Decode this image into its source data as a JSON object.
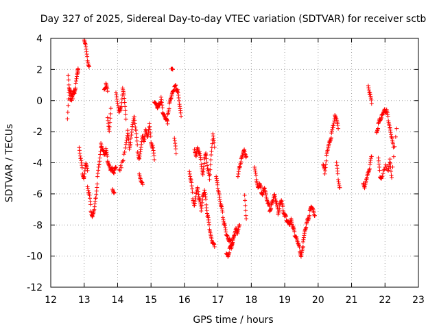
{
  "chart_data": {
    "type": "scatter",
    "title": "Day 327 of 2025, Sidereal Day-to-day VTEC variation (SDTVAR) for receiver sctb",
    "xlabel": "GPS time / hours",
    "ylabel": "SDTVAR / TECUs",
    "xlim": [
      12,
      23
    ],
    "ylim": [
      -12,
      4
    ],
    "xticks": [
      12,
      13,
      14,
      15,
      16,
      17,
      18,
      19,
      20,
      21,
      22,
      23
    ],
    "yticks": [
      -12,
      -10,
      -8,
      -6,
      -4,
      -2,
      0,
      2,
      4
    ],
    "grid": true,
    "marker": "+",
    "color": "#ff0000",
    "segments": [
      {
        "x": [
          12.5,
          12.55,
          12.6,
          12.65,
          12.7,
          12.75,
          12.8,
          12.82
        ],
        "y": [
          -1.3,
          0.9,
          0.5,
          0.3,
          0.6,
          1.0,
          1.8,
          2.0
        ]
      },
      {
        "x": [
          12.52,
          12.58,
          12.66,
          12.74
        ],
        "y": [
          1.5,
          0.0,
          0.2,
          0.8
        ]
      },
      {
        "x": [
          12.85,
          12.9,
          12.95,
          13.0,
          13.05,
          13.1
        ],
        "y": [
          -3.0,
          -3.8,
          -4.6,
          -5.0,
          -4.0,
          -4.5
        ]
      },
      {
        "x": [
          13.0,
          13.05,
          13.1,
          13.15
        ],
        "y": [
          3.8,
          3.5,
          2.6,
          2.2
        ]
      },
      {
        "x": [
          13.1,
          13.15,
          13.2,
          13.25,
          13.3,
          13.35,
          13.4,
          13.45,
          13.5
        ],
        "y": [
          -5.5,
          -6.0,
          -7.0,
          -7.5,
          -7.0,
          -6.2,
          -5.0,
          -4.0,
          -3.0
        ]
      },
      {
        "x": [
          13.5,
          13.55,
          13.6,
          13.65,
          13.7,
          13.75,
          13.8,
          13.85,
          13.9,
          13.95
        ],
        "y": [
          -2.8,
          -3.2,
          -3.4,
          -3.2,
          -3.8,
          -4.2,
          -4.5,
          -4.4,
          -4.6,
          -4.3
        ]
      },
      {
        "x": [
          13.6,
          13.65,
          13.7
        ],
        "y": [
          0.8,
          1.0,
          0.6
        ]
      },
      {
        "x": [
          13.7,
          13.75,
          13.8
        ],
        "y": [
          -1.0,
          -2.0,
          -0.5
        ]
      },
      {
        "x": [
          13.85,
          13.9
        ],
        "y": [
          -5.6,
          -5.9
        ]
      },
      {
        "x": [
          13.95,
          14.0,
          14.05,
          14.1,
          14.15,
          14.2,
          14.25
        ],
        "y": [
          0.6,
          -0.2,
          -0.8,
          -0.5,
          0.7,
          0.2,
          -1.2
        ]
      },
      {
        "x": [
          14.05,
          14.15,
          14.25,
          14.3,
          14.35,
          14.4,
          14.45,
          14.5,
          14.55,
          14.6,
          14.65,
          14.7,
          14.75,
          14.8,
          14.85,
          14.9,
          14.95,
          15.0,
          15.05,
          15.1
        ],
        "y": [
          -4.5,
          -4.0,
          -2.8,
          -2.0,
          -3.0,
          -2.5,
          -1.5,
          -1.0,
          -2.0,
          -3.2,
          -3.8,
          -3.0,
          -2.2,
          -2.6,
          -1.8,
          -2.4,
          -1.5,
          -2.6,
          -3.0,
          -3.8
        ]
      },
      {
        "x": [
          14.65,
          14.7,
          14.75
        ],
        "y": [
          -4.8,
          -5.2,
          -5.4
        ]
      },
      {
        "x": [
          15.1,
          15.15,
          15.2,
          15.25,
          15.3,
          15.35,
          15.4,
          15.45,
          15.5
        ],
        "y": [
          0.0,
          -0.2,
          -0.5,
          -0.2,
          0.1,
          -0.7,
          -1.0,
          -1.2,
          -1.5
        ]
      },
      {
        "x": [
          15.5,
          15.55,
          15.6,
          15.65,
          15.7,
          15.75,
          15.8,
          15.85,
          15.9
        ],
        "y": [
          -0.8,
          -0.3,
          0.2,
          0.6,
          0.8,
          0.9,
          0.6,
          -0.2,
          -1.0
        ]
      },
      {
        "x": [
          15.6,
          15.65
        ],
        "y": [
          2.1,
          2.0
        ]
      },
      {
        "x": [
          15.7,
          15.75
        ],
        "y": [
          -2.5,
          -3.4
        ]
      },
      {
        "x": [
          16.15,
          16.2,
          16.25,
          16.3,
          16.35,
          16.4,
          16.45,
          16.5,
          16.55,
          16.6,
          16.65,
          16.7,
          16.75,
          16.8,
          16.85,
          16.9
        ],
        "y": [
          -4.5,
          -5.2,
          -6.2,
          -6.8,
          -6.0,
          -5.6,
          -6.4,
          -7.0,
          -6.2,
          -5.8,
          -6.6,
          -7.5,
          -8.2,
          -8.8,
          -9.2,
          -9.4
        ]
      },
      {
        "x": [
          16.3,
          16.35,
          16.4,
          16.45,
          16.5,
          16.55,
          16.6,
          16.65,
          16.7,
          16.75,
          16.8,
          16.85,
          16.9
        ],
        "y": [
          -3.2,
          -3.6,
          -3.0,
          -3.4,
          -4.0,
          -4.8,
          -3.8,
          -3.4,
          -4.5,
          -5.0,
          -3.5,
          -2.2,
          -3.0
        ]
      },
      {
        "x": [
          16.95,
          17.0,
          17.05,
          17.1,
          17.15,
          17.2,
          17.25,
          17.3,
          17.35,
          17.4,
          17.45,
          17.5,
          17.55,
          17.6,
          17.65
        ],
        "y": [
          -5.0,
          -5.6,
          -6.2,
          -6.8,
          -7.4,
          -8.0,
          -8.6,
          -8.8,
          -9.0,
          -9.2,
          -9.0,
          -8.6,
          -8.2,
          -8.5,
          -8.0
        ]
      },
      {
        "x": [
          17.25,
          17.3,
          17.35,
          17.4,
          17.45
        ],
        "y": [
          -9.8,
          -10.0,
          -9.6,
          -9.4,
          -9.0
        ]
      },
      {
        "x": [
          17.6,
          17.65,
          17.7,
          17.75,
          17.8,
          17.85
        ],
        "y": [
          -5.0,
          -4.2,
          -3.8,
          -3.4,
          -3.2,
          -3.6
        ]
      },
      {
        "x": [
          17.8,
          17.85
        ],
        "y": [
          -6.0,
          -7.6
        ]
      },
      {
        "x": [
          18.1,
          18.15,
          18.2,
          18.25,
          18.3,
          18.35,
          18.4,
          18.45,
          18.5,
          18.55,
          18.6,
          18.65,
          18.7,
          18.75,
          18.8,
          18.85,
          18.9,
          18.95,
          19.0,
          19.05,
          19.1,
          19.15,
          19.2,
          19.25,
          19.3,
          19.35,
          19.4,
          19.45,
          19.5,
          19.55
        ],
        "y": [
          -4.4,
          -5.0,
          -5.6,
          -5.4,
          -5.8,
          -6.0,
          -5.6,
          -6.2,
          -6.6,
          -7.0,
          -6.8,
          -6.4,
          -6.0,
          -6.6,
          -7.2,
          -6.8,
          -6.4,
          -7.0,
          -7.4,
          -7.6,
          -7.8,
          -8.0,
          -7.6,
          -8.2,
          -8.6,
          -8.8,
          -9.2,
          -9.6,
          -10.0,
          -9.4
        ]
      },
      {
        "x": [
          19.55,
          19.6,
          19.65,
          19.7,
          19.75,
          19.8,
          19.85,
          19.9
        ],
        "y": [
          -9.0,
          -8.4,
          -8.0,
          -7.6,
          -7.2,
          -6.8,
          -7.0,
          -7.4
        ]
      },
      {
        "x": [
          20.15,
          20.2,
          20.25,
          20.3,
          20.35,
          20.4,
          20.45,
          20.5,
          20.55,
          20.6
        ],
        "y": [
          -4.2,
          -4.6,
          -3.6,
          -3.0,
          -2.6,
          -2.2,
          -1.6,
          -1.0,
          -1.2,
          -1.8
        ]
      },
      {
        "x": [
          20.55,
          20.6,
          20.65
        ],
        "y": [
          -4.0,
          -5.0,
          -5.6
        ]
      },
      {
        "x": [
          21.35,
          21.4,
          21.45,
          21.5,
          21.55,
          21.6
        ],
        "y": [
          -5.2,
          -5.6,
          -5.0,
          -4.6,
          -4.2,
          -3.6
        ]
      },
      {
        "x": [
          21.5,
          21.55,
          21.6
        ],
        "y": [
          1.0,
          0.4,
          -0.2
        ]
      },
      {
        "x": [
          21.75,
          21.8,
          21.85,
          21.9,
          21.95,
          22.0,
          22.05,
          22.1,
          22.15,
          22.2,
          22.25
        ],
        "y": [
          -2.0,
          -1.6,
          -1.2,
          -1.0,
          -0.8,
          -0.6,
          -0.7,
          -1.2,
          -1.8,
          -2.4,
          -3.0
        ]
      },
      {
        "x": [
          21.8,
          21.85,
          21.9,
          22.0,
          22.1,
          22.15,
          22.2,
          22.35
        ],
        "y": [
          -3.8,
          -4.8,
          -5.0,
          -4.2,
          -4.4,
          -3.8,
          -5.0,
          -1.8
        ]
      }
    ]
  }
}
